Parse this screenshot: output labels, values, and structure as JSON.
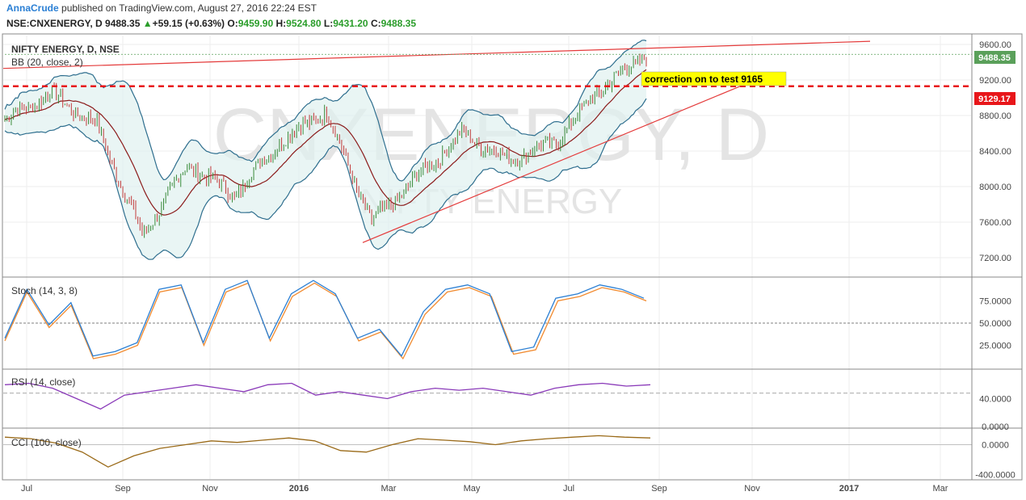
{
  "header": {
    "author": "AnnaCrude",
    "published_text": "published on TradingView.com, August 27, 2016 22:24 EST",
    "symbol": "NSE:CNXENERGY, D",
    "last": "9488.35",
    "change": "+59.15 (+0.63%)",
    "open_label": "O:",
    "open": "9459.90",
    "high_label": "H:",
    "high": "9524.80",
    "low_label": "L:",
    "low": "9431.20",
    "close_label": "C:",
    "close": "9488.35"
  },
  "chart_data": [
    {
      "type": "candlestick",
      "title": "NIFTY ENERGY, D, NSE",
      "watermark": "CNXENERGY, D",
      "watermark_sub": "NIFTY ENERGY",
      "indicator": "BB (20, close, 2)",
      "ylim": [
        7000,
        9700
      ],
      "y_ticks": [
        "9600.00",
        "9200.00",
        "8800.00",
        "8400.00",
        "8000.00",
        "7600.00",
        "7200.00"
      ],
      "x_ticks": [
        "Jul",
        "Sep",
        "Nov",
        "2016",
        "Mar",
        "May",
        "Jul",
        "Sep",
        "Nov",
        "2017",
        "Mar"
      ],
      "last_price_label": "9488.35",
      "level_label": "9129.17",
      "level_value": 9129.17,
      "annotation": "correction on to test 9165",
      "close_path": [
        [
          "Jun 2015",
          8750
        ],
        [
          "Jul 2015",
          9050
        ],
        [
          "Aug 2015",
          8700
        ],
        [
          "Sep 2015",
          7450
        ],
        [
          "Oct 2015",
          8250
        ],
        [
          "Nov 2015",
          7900
        ],
        [
          "Dec 2015",
          8500
        ],
        [
          "Jan 2016",
          8850
        ],
        [
          "Feb 2016",
          7600
        ],
        [
          "Mar 2016",
          8100
        ],
        [
          "Apr 2016",
          8600
        ],
        [
          "May 2016",
          8300
        ],
        [
          "Jun 2016",
          8500
        ],
        [
          "Jul 2016",
          9100
        ],
        [
          "Aug 2016",
          9488
        ]
      ]
    },
    {
      "type": "line",
      "title": "Stoch (14, 3, 8)",
      "ylim": [
        0,
        100
      ],
      "y_ticks": [
        "75.0000",
        "50.0000",
        "25.0000"
      ],
      "series": [
        {
          "values": [
            30,
            85,
            45,
            70,
            10,
            15,
            25,
            85,
            90,
            25,
            85,
            95,
            30,
            80,
            95,
            80,
            30,
            40,
            10,
            60,
            85,
            90,
            80,
            15,
            20,
            75,
            80,
            90,
            85,
            75
          ]
        }
      ]
    },
    {
      "type": "line",
      "title": "RSI (14, close)",
      "ylim": [
        0,
        80
      ],
      "y_ticks": [
        "40.0000",
        "0.0000"
      ],
      "series": [
        {
          "values": [
            60,
            62,
            55,
            40,
            25,
            45,
            50,
            55,
            60,
            55,
            50,
            60,
            62,
            45,
            50,
            45,
            40,
            50,
            55,
            52,
            55,
            50,
            45,
            55,
            60,
            62,
            58,
            60
          ]
        }
      ]
    },
    {
      "type": "area",
      "title": "CCI (100, close)",
      "ylim": [
        -450,
        200
      ],
      "y_ticks": [
        "0.0000",
        "-400.0000"
      ],
      "series": [
        {
          "values": [
            100,
            80,
            20,
            -100,
            -300,
            -150,
            -50,
            0,
            50,
            30,
            60,
            90,
            50,
            -80,
            -100,
            0,
            80,
            60,
            40,
            0,
            50,
            80,
            100,
            120,
            100,
            90
          ]
        }
      ]
    }
  ]
}
